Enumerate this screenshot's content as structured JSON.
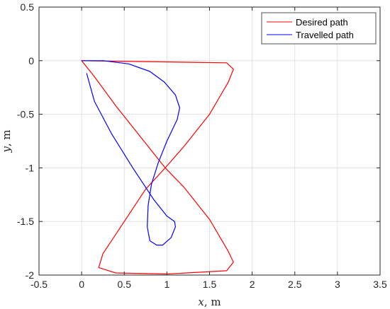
{
  "chart_data": {
    "type": "line",
    "xlabel": {
      "var": "x",
      "unit": ", m"
    },
    "ylabel": {
      "var": "y",
      "unit": ", m"
    },
    "xlim": [
      -0.5,
      3.5
    ],
    "ylim": [
      -2,
      0.5
    ],
    "xticks": [
      -0.5,
      0,
      0.5,
      1,
      1.5,
      2,
      2.5,
      3,
      3.5
    ],
    "xtick_labels": [
      "-0.5",
      "0",
      "0.5",
      "1",
      "1.5",
      "2",
      "2.5",
      "3",
      "3.5"
    ],
    "yticks": [
      -2,
      -1.5,
      -1,
      -0.5,
      0,
      0.5
    ],
    "ytick_labels": [
      "-2",
      "-1.5",
      "-1",
      "-0.5",
      "0",
      "0.5"
    ],
    "grid": true,
    "legend_position": "top-right",
    "series": [
      {
        "name": "Desired path",
        "color": "#ff0000",
        "x": [
          0.0,
          1.7,
          1.78,
          1.72,
          1.5,
          1.2,
          0.98,
          0.75,
          0.5,
          0.25,
          0.2,
          0.4,
          1.0,
          1.7,
          1.78,
          1.72,
          1.5,
          1.2,
          0.98,
          0.7,
          0.4,
          0.15,
          0.0
        ],
        "y": [
          0.0,
          -0.02,
          -0.08,
          -0.2,
          -0.5,
          -0.8,
          -1.0,
          -1.2,
          -1.5,
          -1.8,
          -1.93,
          -1.98,
          -1.99,
          -1.96,
          -1.88,
          -1.78,
          -1.48,
          -1.18,
          -1.0,
          -0.72,
          -0.42,
          -0.15,
          0.0
        ]
      },
      {
        "name": "Travelled path",
        "color": "#0000ff",
        "x": [
          0.0,
          0.25,
          0.55,
          0.8,
          0.97,
          1.1,
          1.15,
          1.12,
          1.0,
          0.9,
          0.82,
          0.78,
          0.77,
          0.8,
          0.88,
          0.95,
          1.05,
          1.1,
          1.09,
          1.0,
          0.85,
          0.6,
          0.35,
          0.15,
          0.06
        ],
        "y": [
          0.0,
          0.0,
          -0.03,
          -0.1,
          -0.2,
          -0.32,
          -0.44,
          -0.55,
          -0.75,
          -0.95,
          -1.15,
          -1.35,
          -1.55,
          -1.68,
          -1.72,
          -1.72,
          -1.65,
          -1.55,
          -1.5,
          -1.45,
          -1.3,
          -1.0,
          -0.68,
          -0.38,
          -0.12
        ]
      }
    ]
  }
}
